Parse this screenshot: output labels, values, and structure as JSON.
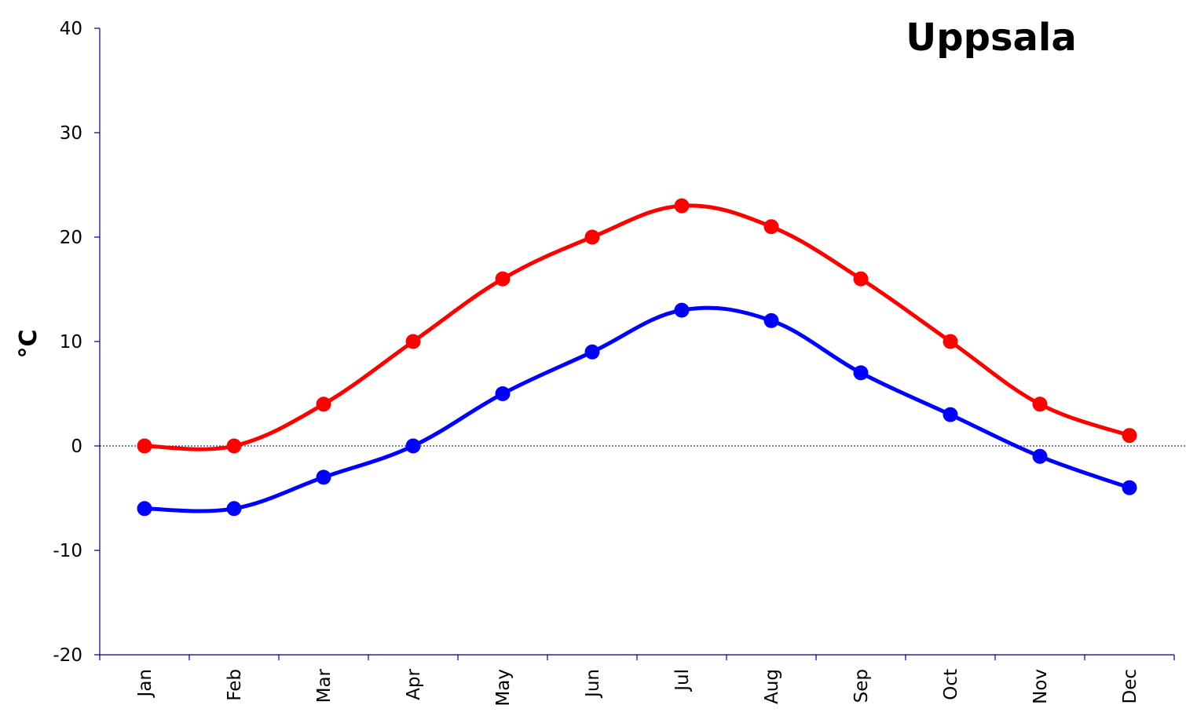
{
  "chart_data": {
    "type": "line",
    "title": "Uppsala",
    "xlabel": "",
    "ylabel": "°C",
    "categories": [
      "Jan",
      "Feb",
      "Mar",
      "Apr",
      "May",
      "Jun",
      "Jul",
      "Aug",
      "Sep",
      "Oct",
      "Nov",
      "Dec"
    ],
    "ylim": [
      -20,
      40
    ],
    "yticks": [
      -20,
      -10,
      0,
      10,
      20,
      30,
      40
    ],
    "zero_line": true,
    "grid": false,
    "legend": "none",
    "series": [
      {
        "color": "#ff0000",
        "values": [
          0,
          0,
          4,
          10,
          16,
          20,
          23,
          21,
          16,
          10,
          4,
          1
        ]
      },
      {
        "color": "#0000ff",
        "values": [
          -6,
          -6,
          -3,
          0,
          5,
          9,
          13,
          12,
          7,
          3,
          -1,
          -4
        ]
      }
    ]
  }
}
